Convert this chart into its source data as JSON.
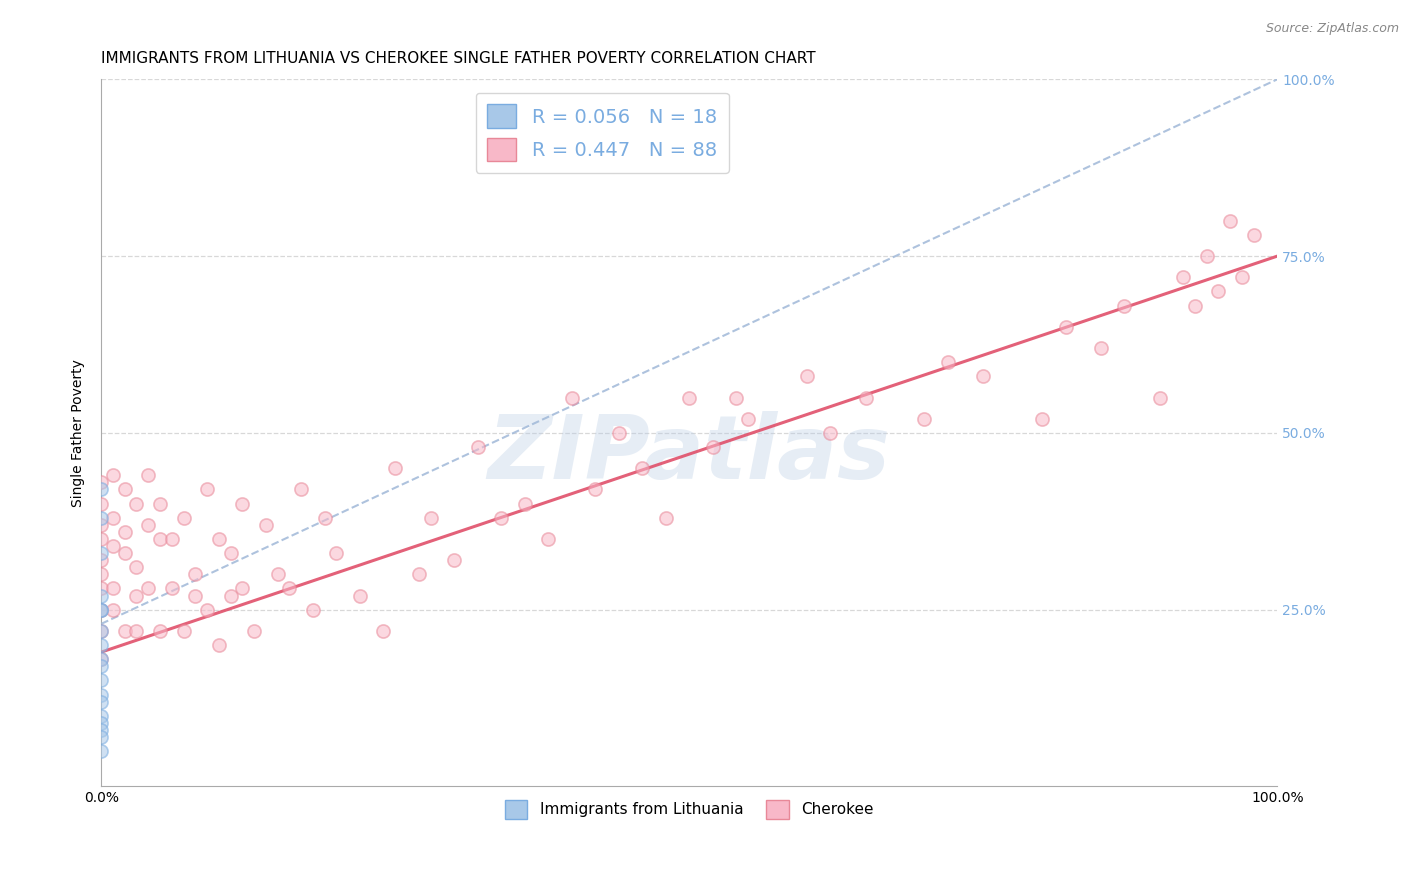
{
  "title": "IMMIGRANTS FROM LITHUANIA VS CHEROKEE SINGLE FATHER POVERTY CORRELATION CHART",
  "source": "Source: ZipAtlas.com",
  "ylabel": "Single Father Poverty",
  "legend_series": [
    {
      "label": "Immigrants from Lithuania",
      "R": 0.056,
      "N": 18
    },
    {
      "label": "Cherokee",
      "R": 0.447,
      "N": 88
    }
  ],
  "xlim": [
    0.0,
    1.0
  ],
  "ylim": [
    0.0,
    1.0
  ],
  "ytick_labels": [
    "25.0%",
    "50.0%",
    "75.0%",
    "100.0%"
  ],
  "ytick_positions": [
    0.25,
    0.5,
    0.75,
    1.0
  ],
  "watermark": "ZIPatlas",
  "grid_color": "#d8d8d8",
  "blue_color": "#a8c8e8",
  "blue_edge": "#7aace0",
  "pink_color": "#f8b8c8",
  "pink_edge": "#e88898",
  "trend_pink_color": "#e0506a",
  "trend_blue_color": "#a0b8d8",
  "title_fontsize": 11,
  "axis_label_fontsize": 10,
  "tick_fontsize": 10,
  "scatter_size": 90,
  "scatter_alpha": 0.55,
  "scatter_linewidth": 1.2,
  "lithuania_x": [
    0.0,
    0.0,
    0.0,
    0.0,
    0.0,
    0.0,
    0.0,
    0.0,
    0.0,
    0.0,
    0.0,
    0.0,
    0.0,
    0.0,
    0.0,
    0.0,
    0.0,
    0.0
  ],
  "lithuania_y": [
    0.42,
    0.38,
    0.33,
    0.27,
    0.25,
    0.25,
    0.22,
    0.2,
    0.18,
    0.17,
    0.15,
    0.13,
    0.12,
    0.1,
    0.09,
    0.08,
    0.07,
    0.05
  ],
  "cherokee_x": [
    0.0,
    0.0,
    0.0,
    0.0,
    0.0,
    0.0,
    0.0,
    0.0,
    0.0,
    0.0,
    0.01,
    0.01,
    0.01,
    0.01,
    0.01,
    0.02,
    0.02,
    0.02,
    0.02,
    0.03,
    0.03,
    0.03,
    0.03,
    0.04,
    0.04,
    0.04,
    0.05,
    0.05,
    0.05,
    0.06,
    0.06,
    0.07,
    0.07,
    0.08,
    0.08,
    0.09,
    0.09,
    0.1,
    0.1,
    0.11,
    0.11,
    0.12,
    0.12,
    0.13,
    0.14,
    0.15,
    0.16,
    0.17,
    0.18,
    0.19,
    0.2,
    0.22,
    0.24,
    0.25,
    0.27,
    0.28,
    0.3,
    0.32,
    0.34,
    0.36,
    0.38,
    0.4,
    0.42,
    0.44,
    0.46,
    0.48,
    0.5,
    0.52,
    0.54,
    0.55,
    0.6,
    0.62,
    0.65,
    0.7,
    0.72,
    0.75,
    0.8,
    0.82,
    0.85,
    0.87,
    0.9,
    0.92,
    0.93,
    0.94,
    0.95,
    0.96,
    0.97,
    0.98
  ],
  "cherokee_y": [
    0.37,
    0.22,
    0.35,
    0.4,
    0.28,
    0.32,
    0.25,
    0.43,
    0.18,
    0.3,
    0.38,
    0.25,
    0.44,
    0.28,
    0.34,
    0.42,
    0.33,
    0.22,
    0.36,
    0.4,
    0.27,
    0.31,
    0.22,
    0.37,
    0.44,
    0.28,
    0.35,
    0.22,
    0.4,
    0.28,
    0.35,
    0.22,
    0.38,
    0.27,
    0.3,
    0.25,
    0.42,
    0.2,
    0.35,
    0.27,
    0.33,
    0.4,
    0.28,
    0.22,
    0.37,
    0.3,
    0.28,
    0.42,
    0.25,
    0.38,
    0.33,
    0.27,
    0.22,
    0.45,
    0.3,
    0.38,
    0.32,
    0.48,
    0.38,
    0.4,
    0.35,
    0.55,
    0.42,
    0.5,
    0.45,
    0.38,
    0.55,
    0.48,
    0.55,
    0.52,
    0.58,
    0.5,
    0.55,
    0.52,
    0.6,
    0.58,
    0.52,
    0.65,
    0.62,
    0.68,
    0.55,
    0.72,
    0.68,
    0.75,
    0.7,
    0.8,
    0.72,
    0.78
  ],
  "lith_trend_x0": 0.0,
  "lith_trend_y0": 0.23,
  "lith_trend_x1": 1.0,
  "lith_trend_y1": 1.0,
  "cher_trend_x0": 0.0,
  "cher_trend_y0": 0.19,
  "cher_trend_x1": 1.0,
  "cher_trend_y1": 0.75
}
